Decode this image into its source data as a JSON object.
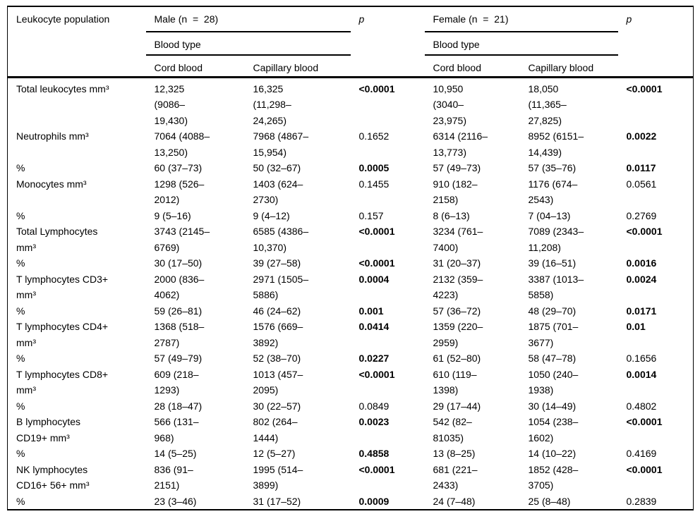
{
  "colors": {
    "text": "#000000",
    "border": "#000000",
    "background": "#ffffff"
  },
  "table": {
    "header": {
      "col_leukocyte": "Leukocyte population",
      "male_group": "Male (n  =  28)",
      "female_group": "Female (n  =  21)",
      "p_label": "p",
      "blood_type": "Blood type",
      "cord_blood": "Cord blood",
      "capillary_blood": "Capillary blood"
    },
    "rows": [
      {
        "label": "Total leukocytes mm³",
        "male_cord": "12,325\n(9086–\n19,430)",
        "male_capillary": "16,325\n(11,298–\n24,265)",
        "male_p": "<0.0001",
        "male_p_bold": true,
        "female_cord": "10,950\n(3040–\n23,975)",
        "female_capillary": "18,050\n(11,365–\n27,825)",
        "female_p": "<0.0001",
        "female_p_bold": true
      },
      {
        "label": "Neutrophils mm³",
        "male_cord": "7064 (4088–\n13,250)",
        "male_capillary": "7968 (4867–\n15,954)",
        "male_p": "0.1652",
        "male_p_bold": false,
        "female_cord": "6314 (2116–\n13,773)",
        "female_capillary": "8952 (6151–\n14,439)",
        "female_p": "0.0022",
        "female_p_bold": true
      },
      {
        "label": "%",
        "male_cord": "60 (37–73)",
        "male_capillary": "50 (32–67)",
        "male_p": "0.0005",
        "male_p_bold": true,
        "female_cord": "57 (49–73)",
        "female_capillary": "57 (35–76)",
        "female_p": "0.0117",
        "female_p_bold": true
      },
      {
        "label": "Monocytes mm³",
        "male_cord": "1298 (526–\n2012)",
        "male_capillary": "1403 (624–\n2730)",
        "male_p": "0.1455",
        "male_p_bold": false,
        "female_cord": "910 (182–\n2158)",
        "female_capillary": "1176 (674–\n2543)",
        "female_p": "0.0561",
        "female_p_bold": false
      },
      {
        "label": "%",
        "male_cord": "9 (5–16)",
        "male_capillary": "9 (4–12)",
        "male_p": "0.157",
        "male_p_bold": false,
        "female_cord": "8 (6–13)",
        "female_capillary": "7 (04–13)",
        "female_p": "0.2769",
        "female_p_bold": false
      },
      {
        "label": "Total Lymphocytes\nmm³",
        "male_cord": "3743 (2145–\n6769)",
        "male_capillary": "6585 (4386–\n10,370)",
        "male_p": "<0.0001",
        "male_p_bold": true,
        "female_cord": "3234 (761–\n7400)",
        "female_capillary": "7089 (2343–\n11,208)",
        "female_p": "<0.0001",
        "female_p_bold": true
      },
      {
        "label": "%",
        "male_cord": "30 (17–50)",
        "male_capillary": "39 (27–58)",
        "male_p": "<0.0001",
        "male_p_bold": true,
        "female_cord": "31 (20–37)",
        "female_capillary": "39 (16–51)",
        "female_p": "0.0016",
        "female_p_bold": true
      },
      {
        "label": "T lymphocytes CD3+\nmm³",
        "male_cord": "2000 (836–\n4062)",
        "male_capillary": "2971 (1505–\n5886)",
        "male_p": "0.0004",
        "male_p_bold": true,
        "female_cord": "2132 (359–\n4223)",
        "female_capillary": "3387 (1013–\n5858)",
        "female_p": "0.0024",
        "female_p_bold": true
      },
      {
        "label": "%",
        "male_cord": "59 (26–81)",
        "male_capillary": "46 (24–62)",
        "male_p": "0.001",
        "male_p_bold": true,
        "female_cord": "57 (36–72)",
        "female_capillary": "48 (29–70)",
        "female_p": "0.0171",
        "female_p_bold": true
      },
      {
        "label": "T lymphocytes CD4+\nmm³",
        "male_cord": "1368 (518–\n2787)",
        "male_capillary": "1576 (669–\n3892)",
        "male_p": "0.0414",
        "male_p_bold": true,
        "female_cord": "1359 (220–\n2959)",
        "female_capillary": "1875 (701–\n3677)",
        "female_p": "0.01",
        "female_p_bold": true
      },
      {
        "label": "%",
        "male_cord": "57 (49–79)",
        "male_capillary": "52 (38–70)",
        "male_p": "0.0227",
        "male_p_bold": true,
        "female_cord": "61 (52–80)",
        "female_capillary": "58 (47–78)",
        "female_p": "0.1656",
        "female_p_bold": false
      },
      {
        "label": "T lymphocytes CD8+\nmm³",
        "male_cord": "609 (218–\n1293)",
        "male_capillary": "1013 (457–\n2095)",
        "male_p": "<0.0001",
        "male_p_bold": true,
        "female_cord": "610 (119–\n1398)",
        "female_capillary": "1050 (240–\n1938)",
        "female_p": "0.0014",
        "female_p_bold": true
      },
      {
        "label": "%",
        "male_cord": "28 (18–47)",
        "male_capillary": "30 (22–57)",
        "male_p": "0.0849",
        "male_p_bold": false,
        "female_cord": "29 (17–44)",
        "female_capillary": "30 (14–49)",
        "female_p": "0.4802",
        "female_p_bold": false
      },
      {
        "label": "B lymphocytes\nCD19+ mm³",
        "male_cord": "566 (131–\n968)",
        "male_capillary": "802 (264–\n1444)",
        "male_p": "0.0023",
        "male_p_bold": true,
        "female_cord": "542 (82–\n81035)",
        "female_capillary": "1054 (238–\n1602)",
        "female_p": "<0.0001",
        "female_p_bold": true
      },
      {
        "label": "%",
        "male_cord": "14 (5–25)",
        "male_capillary": "12 (5–27)",
        "male_p": "0.4858",
        "male_p_bold": true,
        "female_cord": "13 (8–25)",
        "female_capillary": "14 (10–22)",
        "female_p": "0.4169",
        "female_p_bold": false
      },
      {
        "label": "NK lymphocytes\nCD16+ 56+ mm³",
        "male_cord": "836 (91–\n2151)",
        "male_capillary": "1995 (514–\n3899)",
        "male_p": "<0.0001",
        "male_p_bold": true,
        "female_cord": "681 (221–\n2433)",
        "female_capillary": "1852 (428–\n3705)",
        "female_p": "<0.0001",
        "female_p_bold": true
      },
      {
        "label": "%",
        "male_cord": "23 (3–46)",
        "male_capillary": "31 (17–52)",
        "male_p": "0.0009",
        "male_p_bold": true,
        "female_cord": "24 (7–48)",
        "female_capillary": "25 (8–48)",
        "female_p": "0.2839",
        "female_p_bold": false
      }
    ]
  }
}
